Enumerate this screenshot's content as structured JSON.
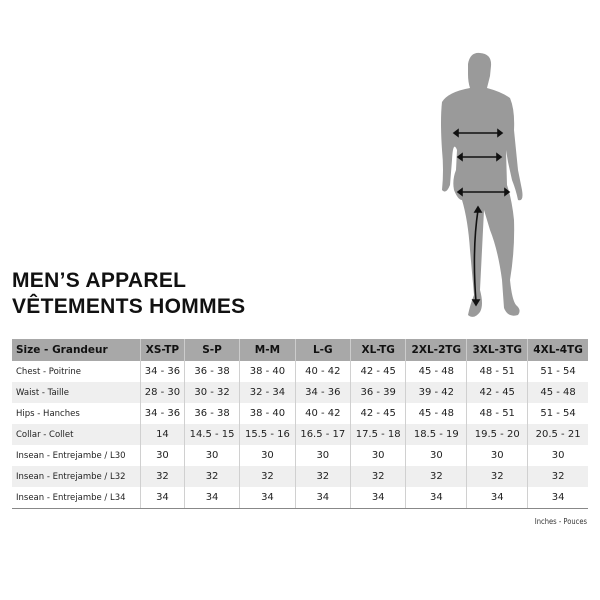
{
  "title": {
    "line1": "MEN’S APPAREL",
    "line2": "VÊTEMENTS HOMMES"
  },
  "table": {
    "headers": [
      "Size - Grandeur",
      "XS-TP",
      "S-P",
      "M-M",
      "L-G",
      "XL-TG",
      "2XL-2TG",
      "3XL-3TG",
      "4XL-4TG"
    ],
    "rows": [
      [
        "Chest - Poitrine",
        "34 - 36",
        "36 - 38",
        "38 - 40",
        "40 - 42",
        "42 - 45",
        "45 - 48",
        "48 - 51",
        "51 - 54"
      ],
      [
        "Waist - Taille",
        "28 - 30",
        "30 - 32",
        "32 - 34",
        "34 - 36",
        "36 - 39",
        "39 - 42",
        "42 - 45",
        "45 - 48"
      ],
      [
        "Hips - Hanches",
        "34 - 36",
        "36 - 38",
        "38 - 40",
        "40 - 42",
        "42 - 45",
        "45 - 48",
        "48 - 51",
        "51 - 54"
      ],
      [
        "Collar - Collet",
        "14",
        "14.5 - 15",
        "15.5 - 16",
        "16.5 - 17",
        "17.5 - 18",
        "18.5 - 19",
        "19.5 - 20",
        "20.5 - 21"
      ],
      [
        "Insean - Entrejambe / L30",
        "30",
        "30",
        "30",
        "30",
        "30",
        "30",
        "30",
        "30"
      ],
      [
        "Insean - Entrejambe / L32",
        "32",
        "32",
        "32",
        "32",
        "32",
        "32",
        "32",
        "32"
      ],
      [
        "Insean - Entrejambe / L34",
        "34",
        "34",
        "34",
        "34",
        "34",
        "34",
        "34",
        "34"
      ]
    ]
  },
  "units": "Inches - Pouces",
  "colors": {
    "header_bg": "#a8a8a8",
    "alt_row": "#efefef",
    "silhouette": "#9a9a9a"
  }
}
